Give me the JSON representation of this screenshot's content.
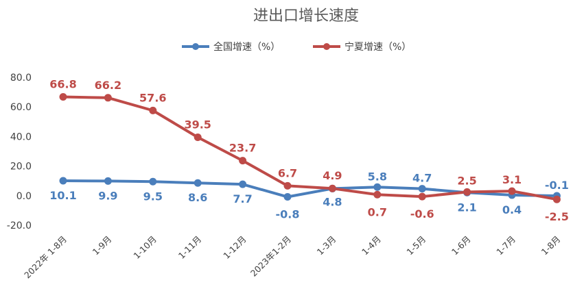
{
  "chart_data": {
    "type": "line",
    "title": "进出口增长速度",
    "categories": [
      "2022年 1-8月",
      "1-9月",
      "1-10月",
      "1-11月",
      "1-12月",
      "2023年1-2月",
      "1-3月",
      "1-4月",
      "1-5月",
      "1-6月",
      "1-7月",
      "1-8月"
    ],
    "series": [
      {
        "name": "全国增速（%）",
        "color": "#4a7ebb",
        "values": [
          10.1,
          9.9,
          9.5,
          8.6,
          7.7,
          -0.8,
          4.8,
          5.8,
          4.7,
          2.1,
          0.4,
          -0.1
        ],
        "labels": [
          "10.1",
          "9.9",
          "9.5",
          "8.6",
          "7.7",
          "-0.8",
          "4.8",
          "5.8",
          "4.7",
          "2.1",
          "0.4",
          "-0.1"
        ]
      },
      {
        "name": "宁夏增速（%）",
        "color": "#be4b48",
        "values": [
          66.8,
          66.2,
          57.6,
          39.5,
          23.7,
          6.7,
          4.9,
          0.7,
          -0.6,
          2.5,
          3.1,
          -2.5
        ],
        "labels": [
          "66.8",
          "66.2",
          "57.6",
          "39.5",
          "23.7",
          "6.7",
          "4.9",
          "0.7",
          "-0.6",
          "2.5",
          "3.1",
          "-2.5"
        ]
      }
    ],
    "ylim": [
      -20,
      80
    ],
    "yticks": [
      "-20.0",
      "0.0",
      "20.0",
      "40.0",
      "60.0",
      "80.0"
    ],
    "legend_position": "top-center",
    "grid": false
  }
}
